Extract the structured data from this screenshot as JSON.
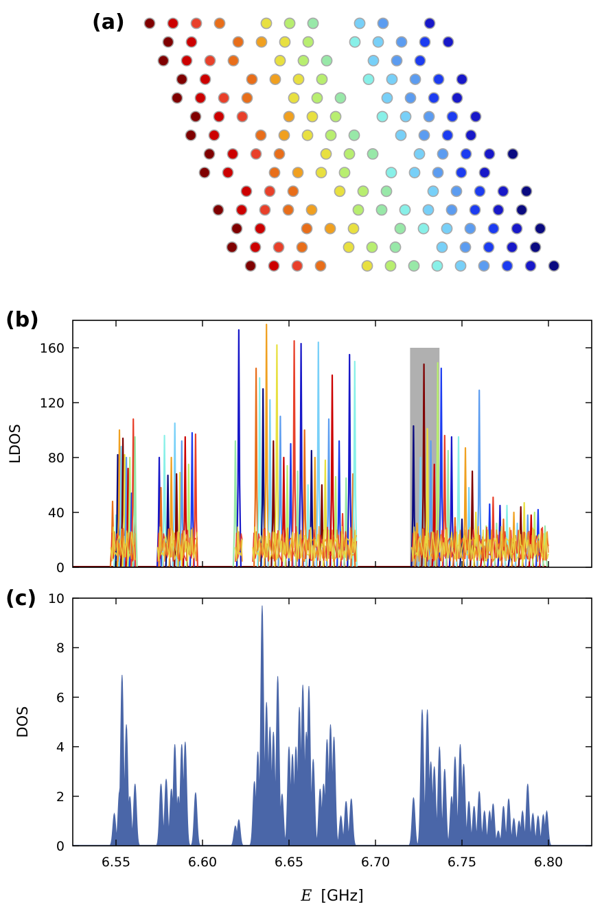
{
  "panels": {
    "a": "(a)",
    "b": "(b)",
    "c": "(c)"
  },
  "colors": {
    "rows": [
      "#7f0000",
      "#cc0000",
      "#e8402a",
      "#e86e1a",
      "#f0a020",
      "#e8e040",
      "#b8ee70",
      "#98e8a8",
      "#88f0e8",
      "#78d0f8",
      "#5c9cf0",
      "#1c3cf0",
      "#1818c8",
      "#0a0a80"
    ],
    "dot_stroke": "#a8a8a8",
    "dos_fill": "#4a66a8",
    "highlight": "#b0b0b0"
  },
  "chart_data": [
    {
      "panel": "a",
      "type": "scatter",
      "description_free": true,
      "grid": false,
      "rows": [
        {
          "y": 0,
          "cols": [
            0,
            1,
            2,
            3,
            5,
            6,
            7,
            9,
            10,
            12
          ]
        },
        {
          "y": 1,
          "cols": [
            0,
            1,
            3,
            4,
            5,
            6,
            8,
            9,
            10,
            11,
            12
          ]
        },
        {
          "y": 2,
          "cols": [
            0,
            1,
            2,
            3,
            5,
            6,
            7,
            9,
            10,
            11
          ]
        },
        {
          "y": 3,
          "cols": [
            0,
            1,
            3,
            4,
            5,
            6,
            8,
            9,
            10,
            11,
            12
          ]
        },
        {
          "y": 4,
          "cols": [
            0,
            1,
            2,
            3,
            5,
            6,
            7,
            9,
            10,
            11,
            12
          ]
        },
        {
          "y": 5,
          "cols": [
            0,
            1,
            2,
            4,
            5,
            6,
            8,
            9,
            10,
            11,
            12
          ]
        },
        {
          "y": 6,
          "cols": [
            0,
            1,
            3,
            4,
            5,
            6,
            7,
            9,
            10,
            11,
            12
          ]
        },
        {
          "y": 7,
          "cols": [
            0,
            1,
            2,
            3,
            5,
            6,
            7,
            9,
            10,
            11,
            12,
            13
          ]
        },
        {
          "y": 8,
          "cols": [
            0,
            1,
            3,
            4,
            5,
            6,
            8,
            9,
            10,
            11,
            12
          ]
        },
        {
          "y": 9,
          "cols": [
            1,
            2,
            3,
            5,
            6,
            7,
            9,
            10,
            11,
            12,
            13
          ]
        },
        {
          "y": 10,
          "cols": [
            0,
            1,
            2,
            3,
            4,
            6,
            7,
            8,
            9,
            10,
            11,
            12,
            13
          ]
        },
        {
          "y": 11,
          "cols": [
            0,
            1,
            3,
            4,
            5,
            7,
            8,
            9,
            10,
            11,
            12,
            13
          ]
        },
        {
          "y": 12,
          "cols": [
            0,
            1,
            2,
            3,
            5,
            6,
            7,
            9,
            10,
            11,
            12,
            13
          ]
        },
        {
          "y": 13,
          "cols": [
            0,
            1,
            2,
            3,
            5,
            6,
            7,
            8,
            9,
            10,
            11,
            12,
            13
          ]
        }
      ]
    },
    {
      "panel": "b",
      "type": "line",
      "ylabel": "LDOS",
      "xlim": [
        6.525,
        6.825
      ],
      "ylim": [
        0,
        180
      ],
      "yticks": [
        0,
        40,
        80,
        120,
        160
      ],
      "highlight": {
        "x0": 6.72,
        "x1": 6.737,
        "y": 160
      },
      "bands": [
        {
          "x0": 6.547,
          "x1": 6.561,
          "peaks": [
            [
              6.548,
              48
            ],
            [
              6.55,
              38
            ],
            [
              6.551,
              82
            ],
            [
              6.552,
              100
            ],
            [
              6.553,
              88
            ],
            [
              6.554,
              94
            ],
            [
              6.555,
              82
            ],
            [
              6.556,
              80
            ],
            [
              6.557,
              72
            ],
            [
              6.558,
              80
            ],
            [
              6.559,
              54
            ],
            [
              6.56,
              108
            ],
            [
              6.561,
              95
            ]
          ]
        },
        {
          "x0": 6.574,
          "x1": 6.597,
          "peaks": [
            [
              6.575,
              80
            ],
            [
              6.576,
              58
            ],
            [
              6.578,
              96
            ],
            [
              6.58,
              67
            ],
            [
              6.582,
              80
            ],
            [
              6.584,
              105
            ],
            [
              6.585,
              68
            ],
            [
              6.587,
              69
            ],
            [
              6.588,
              92
            ],
            [
              6.59,
              95
            ],
            [
              6.592,
              75
            ],
            [
              6.594,
              98
            ],
            [
              6.596,
              97
            ]
          ]
        },
        {
          "x0": 6.619,
          "x1": 6.623,
          "peaks": [
            [
              6.619,
              92
            ],
            [
              6.621,
              173
            ]
          ]
        },
        {
          "x0": 6.629,
          "x1": 6.689,
          "peaks": [
            [
              6.631,
              145
            ],
            [
              6.633,
              138
            ],
            [
              6.635,
              130
            ],
            [
              6.637,
              177
            ],
            [
              6.639,
              122
            ],
            [
              6.641,
              92
            ],
            [
              6.643,
              162
            ],
            [
              6.645,
              110
            ],
            [
              6.647,
              80
            ],
            [
              6.649,
              74
            ],
            [
              6.651,
              90
            ],
            [
              6.653,
              165
            ],
            [
              6.655,
              70
            ],
            [
              6.657,
              163
            ],
            [
              6.659,
              100
            ],
            [
              6.661,
              60
            ],
            [
              6.663,
              85
            ],
            [
              6.665,
              80
            ],
            [
              6.667,
              164
            ],
            [
              6.669,
              60
            ],
            [
              6.671,
              78
            ],
            [
              6.673,
              108
            ],
            [
              6.675,
              140
            ],
            [
              6.677,
              66
            ],
            [
              6.679,
              92
            ],
            [
              6.681,
              39
            ],
            [
              6.683,
              65
            ],
            [
              6.685,
              155
            ],
            [
              6.687,
              68
            ],
            [
              6.688,
              150
            ]
          ]
        },
        {
          "x0": 6.721,
          "x1": 6.8,
          "peaks": [
            [
              6.722,
              103
            ],
            [
              6.724,
              32
            ],
            [
              6.726,
              80
            ],
            [
              6.728,
              148
            ],
            [
              6.73,
              101
            ],
            [
              6.732,
              92
            ],
            [
              6.734,
              75
            ],
            [
              6.736,
              149
            ],
            [
              6.738,
              145
            ],
            [
              6.74,
              96
            ],
            [
              6.742,
              85
            ],
            [
              6.744,
              95
            ],
            [
              6.746,
              36
            ],
            [
              6.748,
              95
            ],
            [
              6.75,
              35
            ],
            [
              6.752,
              87
            ],
            [
              6.754,
              58
            ],
            [
              6.756,
              70
            ],
            [
              6.758,
              40
            ],
            [
              6.76,
              129
            ],
            [
              6.762,
              22
            ],
            [
              6.764,
              30
            ],
            [
              6.766,
              46
            ],
            [
              6.768,
              51
            ],
            [
              6.77,
              32
            ],
            [
              6.772,
              45
            ],
            [
              6.774,
              35
            ],
            [
              6.776,
              45
            ],
            [
              6.778,
              20
            ],
            [
              6.78,
              40
            ],
            [
              6.782,
              32
            ],
            [
              6.784,
              44
            ],
            [
              6.786,
              47
            ],
            [
              6.788,
              38
            ],
            [
              6.79,
              38
            ],
            [
              6.792,
              40
            ],
            [
              6.794,
              42
            ],
            [
              6.796,
              28
            ],
            [
              6.798,
              30
            ]
          ]
        }
      ]
    },
    {
      "panel": "c",
      "type": "area",
      "ylabel": "DOS",
      "xlabel_symbol": "E",
      "xlabel_unit": "[GHz]",
      "xlim": [
        6.525,
        6.825
      ],
      "ylim": [
        0,
        10
      ],
      "yticks": [
        0,
        2,
        4,
        6,
        8,
        10
      ],
      "xticks": [
        "6.55",
        "6.60",
        "6.65",
        "6.70",
        "6.75",
        "6.80"
      ],
      "xtick_values": [
        6.55,
        6.6,
        6.65,
        6.7,
        6.75,
        6.8
      ],
      "peaks": [
        [
          6.549,
          1.3
        ],
        [
          6.552,
          2.2
        ],
        [
          6.5535,
          6.9
        ],
        [
          6.556,
          4.9
        ],
        [
          6.558,
          2.0
        ],
        [
          6.561,
          2.5
        ],
        [
          6.576,
          2.5
        ],
        [
          6.579,
          2.7
        ],
        [
          6.582,
          2.3
        ],
        [
          6.584,
          4.1
        ],
        [
          6.586,
          2.0
        ],
        [
          6.588,
          4.1
        ],
        [
          6.59,
          4.2
        ],
        [
          6.596,
          2.15
        ],
        [
          6.619,
          0.8
        ],
        [
          6.621,
          1.05
        ],
        [
          6.63,
          2.6
        ],
        [
          6.632,
          3.8
        ],
        [
          6.6345,
          9.7
        ],
        [
          6.637,
          5.8
        ],
        [
          6.639,
          4.8
        ],
        [
          6.641,
          4.6
        ],
        [
          6.6435,
          6.85
        ],
        [
          6.646,
          2.1
        ],
        [
          6.65,
          4.0
        ],
        [
          6.652,
          3.7
        ],
        [
          6.654,
          4.0
        ],
        [
          6.656,
          5.6
        ],
        [
          6.658,
          6.5
        ],
        [
          6.66,
          4.6
        ],
        [
          6.6615,
          6.45
        ],
        [
          6.664,
          3.5
        ],
        [
          6.668,
          2.3
        ],
        [
          6.67,
          2.5
        ],
        [
          6.672,
          4.3
        ],
        [
          6.674,
          4.9
        ],
        [
          6.676,
          4.4
        ],
        [
          6.68,
          1.2
        ],
        [
          6.683,
          1.8
        ],
        [
          6.686,
          1.9
        ],
        [
          6.722,
          1.95
        ],
        [
          6.727,
          5.5
        ],
        [
          6.73,
          5.5
        ],
        [
          6.732,
          3.4
        ],
        [
          6.734,
          3.2
        ],
        [
          6.737,
          4.0
        ],
        [
          6.74,
          3.1
        ],
        [
          6.744,
          2.0
        ],
        [
          6.746,
          3.6
        ],
        [
          6.749,
          4.1
        ],
        [
          6.751,
          3.3
        ],
        [
          6.754,
          1.8
        ],
        [
          6.757,
          1.6
        ],
        [
          6.76,
          2.2
        ],
        [
          6.763,
          1.4
        ],
        [
          6.766,
          1.4
        ],
        [
          6.768,
          1.7
        ],
        [
          6.771,
          0.6
        ],
        [
          6.774,
          1.6
        ],
        [
          6.777,
          1.9
        ],
        [
          6.78,
          1.1
        ],
        [
          6.783,
          1.0
        ],
        [
          6.785,
          1.4
        ],
        [
          6.788,
          2.5
        ],
        [
          6.791,
          1.3
        ],
        [
          6.794,
          1.2
        ],
        [
          6.797,
          1.25
        ],
        [
          6.799,
          1.4
        ]
      ]
    }
  ]
}
